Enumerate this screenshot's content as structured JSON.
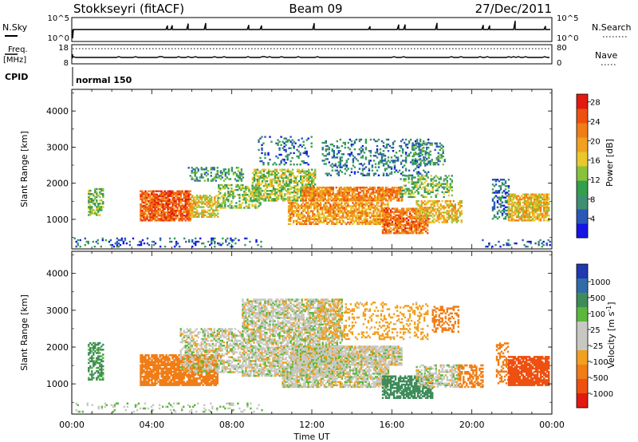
{
  "header": {
    "station": "Stokkseyri (fitACF)",
    "beam": "Beam 09",
    "date": "27/Dec/2011"
  },
  "strip_nsky": {
    "label": "N.Sky",
    "left_ticks": [
      "10^5",
      "10^0"
    ],
    "right_label": "N.Search",
    "right_ticks": [
      "10^5",
      "10^0"
    ]
  },
  "strip_freq": {
    "label_top": "Freq.",
    "label_bottom": "[MHz]",
    "left_ticks": [
      "18",
      "8"
    ],
    "right_label": "Nave",
    "right_ticks": [
      "80",
      "0"
    ]
  },
  "strip_cpid": {
    "label": "CPID",
    "mode": "normal 150"
  },
  "chart_data": [
    {
      "type": "heatmap",
      "quantity": "Power",
      "ylabel": "Slant Range [km]",
      "xlabel": "",
      "ylim": [
        180,
        4600
      ],
      "yticks": [
        "1000",
        "2000",
        "3000",
        "4000"
      ],
      "colorbar_label": "Power [dB]",
      "colorbar_ticks": [
        "4",
        "8",
        "12",
        "16",
        "20",
        "24",
        "28"
      ],
      "colorbar_colors": [
        "#1414e6",
        "#2a57b8",
        "#3f8f72",
        "#33a04d",
        "#88c23a",
        "#e8c82a",
        "#f2a020",
        "#f07d16",
        "#ee5010",
        "#e21a10"
      ],
      "echo_regions": [
        {
          "t0": 0.1,
          "t1": 0.3,
          "r0": 180,
          "r1": 520,
          "p": 6,
          "d": 0.25
        },
        {
          "t0": 0.3,
          "t1": 9.5,
          "r0": 180,
          "r1": 480,
          "p": 5,
          "d": 0.18
        },
        {
          "t0": 0.8,
          "t1": 1.6,
          "r0": 1100,
          "r1": 1850,
          "p": 12,
          "d": 0.55
        },
        {
          "t0": 3.4,
          "t1": 5.9,
          "r0": 950,
          "r1": 1800,
          "p": 24,
          "d": 0.85
        },
        {
          "t0": 5.9,
          "t1": 7.3,
          "r0": 1050,
          "r1": 1650,
          "p": 17,
          "d": 0.6
        },
        {
          "t0": 5.8,
          "t1": 8.6,
          "r0": 2050,
          "r1": 2450,
          "p": 9,
          "d": 0.4
        },
        {
          "t0": 7.3,
          "t1": 9.4,
          "r0": 1300,
          "r1": 1950,
          "p": 13,
          "d": 0.45
        },
        {
          "t0": 9.0,
          "t1": 12.2,
          "r0": 1500,
          "r1": 2400,
          "p": 14,
          "d": 0.6
        },
        {
          "t0": 9.3,
          "t1": 12.0,
          "r0": 2500,
          "r1": 3300,
          "p": 6,
          "d": 0.2
        },
        {
          "t0": 11.5,
          "t1": 16.5,
          "r0": 1500,
          "r1": 1900,
          "p": 22,
          "d": 0.8
        },
        {
          "t0": 10.8,
          "t1": 15.8,
          "r0": 850,
          "r1": 1450,
          "p": 20,
          "d": 0.7
        },
        {
          "t0": 12.5,
          "t1": 17.8,
          "r0": 2200,
          "r1": 3200,
          "p": 7,
          "d": 0.25
        },
        {
          "t0": 15.5,
          "t1": 17.8,
          "r0": 600,
          "r1": 1300,
          "p": 23,
          "d": 0.75
        },
        {
          "t0": 17.2,
          "t1": 19.5,
          "r0": 900,
          "r1": 1500,
          "p": 18,
          "d": 0.55
        },
        {
          "t0": 16.4,
          "t1": 19.0,
          "r0": 1600,
          "r1": 2200,
          "p": 12,
          "d": 0.45
        },
        {
          "t0": 17.0,
          "t1": 18.6,
          "r0": 2500,
          "r1": 3100,
          "p": 8,
          "d": 0.35
        },
        {
          "t0": 21.0,
          "t1": 21.8,
          "r0": 1000,
          "r1": 2100,
          "p": 6,
          "d": 0.4
        },
        {
          "t0": 21.8,
          "t1": 23.9,
          "r0": 950,
          "r1": 1700,
          "p": 18,
          "d": 0.8
        },
        {
          "t0": 20.5,
          "t1": 23.9,
          "r0": 180,
          "r1": 420,
          "p": 5,
          "d": 0.2
        }
      ]
    },
    {
      "type": "heatmap",
      "quantity": "Velocity",
      "ylabel": "Slant Range [km]",
      "xlabel": "Time UT",
      "ylim": [
        180,
        4600
      ],
      "yticks": [
        "1000",
        "2000",
        "3000",
        "4000"
      ],
      "xticks": [
        "00:00",
        "04:00",
        "08:00",
        "12:00",
        "16:00",
        "20:00",
        "00:00"
      ],
      "xlim_hours": [
        0,
        24
      ],
      "colorbar_label": "Velocity [m s",
      "colorbar_label_exp": "-1",
      "colorbar_label_close": "]",
      "colorbar_ticks": [
        "1000",
        "500",
        "100",
        "25",
        "-25",
        "-100",
        "-500",
        "-1000"
      ],
      "colorbar_colors": [
        "#2038b0",
        "#2f6ca8",
        "#3e8c5a",
        "#5ab83a",
        "#c8c8c2",
        "#c8c8c2",
        "#f2a020",
        "#f07d16",
        "#ee5010",
        "#e21a10"
      ],
      "echo_regions": [
        {
          "t0": 0.1,
          "t1": 9.5,
          "r0": 180,
          "r1": 480,
          "v": 15,
          "d": 0.18
        },
        {
          "t0": 0.8,
          "t1": 1.6,
          "r0": 1100,
          "r1": 2100,
          "v": 80,
          "d": 0.5
        },
        {
          "t0": 3.4,
          "t1": 7.3,
          "r0": 950,
          "r1": 1800,
          "v": -250,
          "d": 0.8
        },
        {
          "t0": 5.4,
          "t1": 8.5,
          "r0": 1300,
          "r1": 2500,
          "v": 0,
          "d": 0.55
        },
        {
          "t0": 8.5,
          "t1": 13.5,
          "r0": 1200,
          "r1": 3300,
          "v": 0,
          "d": 0.7
        },
        {
          "t0": 11.0,
          "t1": 16.5,
          "r0": 1500,
          "r1": 2000,
          "v": 0,
          "d": 0.9
        },
        {
          "t0": 10.5,
          "t1": 15.8,
          "r0": 900,
          "r1": 1450,
          "v": 0,
          "d": 0.7
        },
        {
          "t0": 12.3,
          "t1": 17.8,
          "r0": 2200,
          "r1": 3200,
          "v": -60,
          "d": 0.25
        },
        {
          "t0": 15.5,
          "t1": 18.0,
          "r0": 600,
          "r1": 1200,
          "v": 250,
          "d": 0.7
        },
        {
          "t0": 17.2,
          "t1": 19.4,
          "r0": 900,
          "r1": 1500,
          "v": 0,
          "d": 0.55
        },
        {
          "t0": 18.0,
          "t1": 19.3,
          "r0": 2400,
          "r1": 3100,
          "v": -300,
          "d": 0.4
        },
        {
          "t0": 19.3,
          "t1": 20.5,
          "r0": 900,
          "r1": 1500,
          "v": -250,
          "d": 0.5
        },
        {
          "t0": 21.2,
          "t1": 21.8,
          "r0": 1000,
          "r1": 2100,
          "v": -150,
          "d": 0.4
        },
        {
          "t0": 21.8,
          "t1": 23.9,
          "r0": 950,
          "r1": 1750,
          "v": -600,
          "d": 0.85
        }
      ]
    }
  ]
}
